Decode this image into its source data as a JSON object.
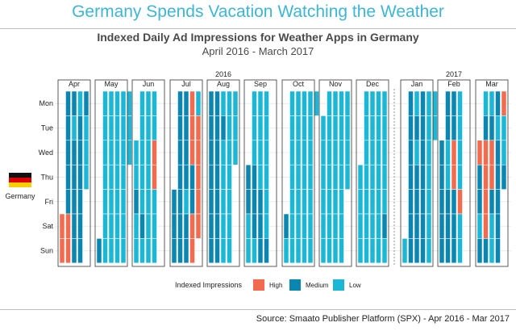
{
  "banner_title": "Germany Spends Vacation Watching the Weather",
  "source": "Source: Smaato Publisher Platform (SPX) - Apr 2016 - Mar 2017",
  "country_label": "Germany",
  "colors": {
    "High": "#f26b4e",
    "Medium": "#0b86b0",
    "Low": "#1cb7d6"
  },
  "chart_data": {
    "type": "heatmap",
    "title": "Indexed Daily Ad Impressions for Weather Apps in Germany",
    "subtitle": "April 2016 - March 2017",
    "year_labels": [
      {
        "label": "2016",
        "month": "Aug"
      },
      {
        "label": "2017",
        "month": "Feb"
      }
    ],
    "weekdays": [
      "Mon",
      "Tue",
      "Wed",
      "Thu",
      "Fri",
      "Sat",
      "Sun"
    ],
    "legend": {
      "title": "Indexed Impressions",
      "levels": [
        "High",
        "Medium",
        "Low"
      ]
    },
    "months": [
      {
        "name": "Apr",
        "weeks": [
          ".....HH",
          "MMMMMHH",
          "MLMMMMM",
          "LMMMMMM",
          "MLLL..."
        ]
      },
      {
        "name": "May",
        "weeks": [
          "......M",
          "LLLLLLL",
          "LLLLLLL",
          "LLLLLLL",
          "LLLLLLL",
          "LLL...."
        ]
      },
      {
        "name": "Jun",
        "weeks": [
          "..LLMLL",
          "LLLLLML",
          "LLLLLLL",
          "LLHHLLL"
        ]
      },
      {
        "name": "Jul",
        "weeks": [
          "....MMM",
          "MMMMMMM",
          "MMMMLMM",
          "HHHMMHH",
          "LHHHHH."
        ]
      },
      {
        "name": "Aug",
        "weeks": [
          "MMMMMMM",
          "MMMMMMM",
          "LMLLLLL",
          "LLLLLLL",
          "LLL...."
        ]
      },
      {
        "name": "Sep",
        "weeks": [
          "...MMLL",
          "LLLMMML",
          "LLLLMMM",
          "LLLLLLM"
        ]
      },
      {
        "name": "Oct",
        "weeks": [
          ".....ML",
          "LLLLLLL",
          "LLLLLLL",
          "LLLLLLL",
          "LLLLLLL",
          "L......"
        ]
      },
      {
        "name": "Nov",
        "weeks": [
          ".LLLLLL",
          "LLLLLLL",
          "LLLLLLL",
          "LLLLLLL",
          "LLLL..."
        ]
      },
      {
        "name": "Dec",
        "weeks": [
          "...LLLL",
          "LLLLLLL",
          "LLLLLLL",
          "LLLLLLL",
          "LLLLLML"
        ]
      },
      {
        "name": "Jan",
        "weeks": [
          "......L",
          "MMMMMMM",
          "LMLMMMM",
          "MMMMMMM",
          "LLLLLLL",
          "LL....."
        ]
      },
      {
        "name": "Feb",
        "weeks": [
          "..MMMMM",
          "MMLLMMM",
          "MMHHMMM",
          "LLLLHLL"
        ]
      },
      {
        "name": "Mar",
        "weeks": [
          "..HMMLM",
          "LMHHHHM",
          "LMHHMLL",
          "MLMMMMM",
          "HLLM..."
        ]
      }
    ]
  }
}
